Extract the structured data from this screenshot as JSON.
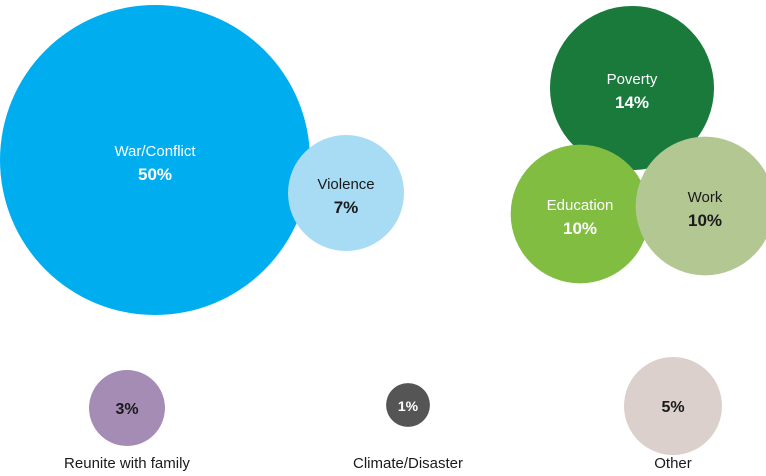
{
  "chart_data": {
    "type": "bubble",
    "title": "",
    "unit": "%",
    "bubbles": [
      {
        "name": "War/Conflict",
        "value": 50,
        "value_label": "50%",
        "color": "#00aeef",
        "label_color": "#ffffff",
        "label_inside": true
      },
      {
        "name": "Violence",
        "value": 7,
        "value_label": "7%",
        "color": "#a8dcf5",
        "label_color": "#1a1a1a",
        "label_inside": true
      },
      {
        "name": "Poverty",
        "value": 14,
        "value_label": "14%",
        "color": "#1a7a3c",
        "label_color": "#ffffff",
        "label_inside": true
      },
      {
        "name": "Education",
        "value": 10,
        "value_label": "10%",
        "color": "#80bd41",
        "label_color": "#ffffff",
        "label_inside": true
      },
      {
        "name": "Work",
        "value": 10,
        "value_label": "10%",
        "color": "#b3c793",
        "label_color": "#1a1a1a",
        "label_inside": true
      },
      {
        "name": "Reunite with family",
        "value": 3,
        "value_label": "3%",
        "color": "#a58cb5",
        "label_color": "#1a1a1a",
        "label_inside": false
      },
      {
        "name": "Climate/Disaster",
        "value": 1,
        "value_label": "1%",
        "color": "#555555",
        "label_color": "#ffffff",
        "label_inside": false
      },
      {
        "name": "Other",
        "value": 5,
        "value_label": "5%",
        "color": "#dbd0cc",
        "label_color": "#1a1a1a",
        "label_inside": false
      }
    ]
  }
}
